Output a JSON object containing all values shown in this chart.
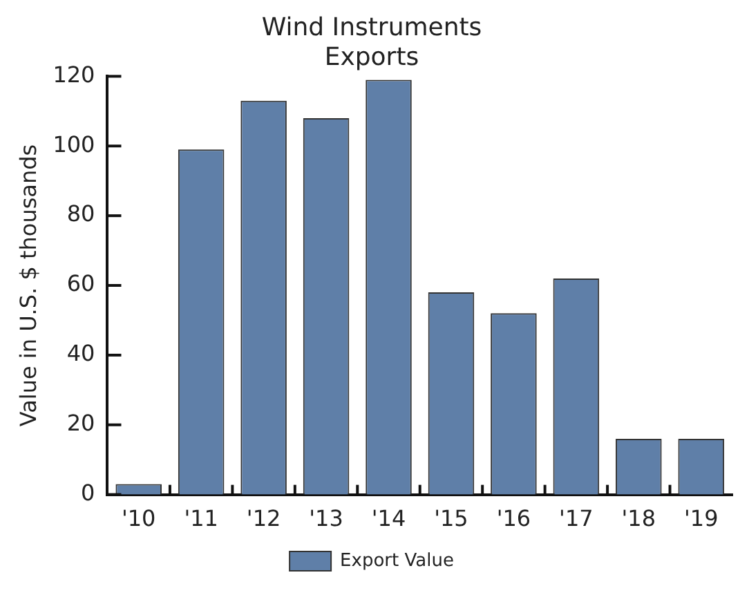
{
  "chart_data": {
    "type": "bar",
    "title": "Wind Instruments Exports",
    "ylabel": "Value in U.S. $ thousands",
    "categories": [
      "'10",
      "'11",
      "'12",
      "'13",
      "'14",
      "'15",
      "'16",
      "'17",
      "'18",
      "'19"
    ],
    "series": [
      {
        "name": "Export Value",
        "color": "#5f7fa8",
        "values": [
          3,
          99,
          113,
          108,
          119,
          58,
          52,
          62,
          16,
          16
        ]
      }
    ],
    "ylim": [
      0,
      120
    ],
    "yticks": [
      0,
      20,
      40,
      60,
      80,
      100,
      120
    ],
    "grid": false,
    "legend": "bottom"
  }
}
